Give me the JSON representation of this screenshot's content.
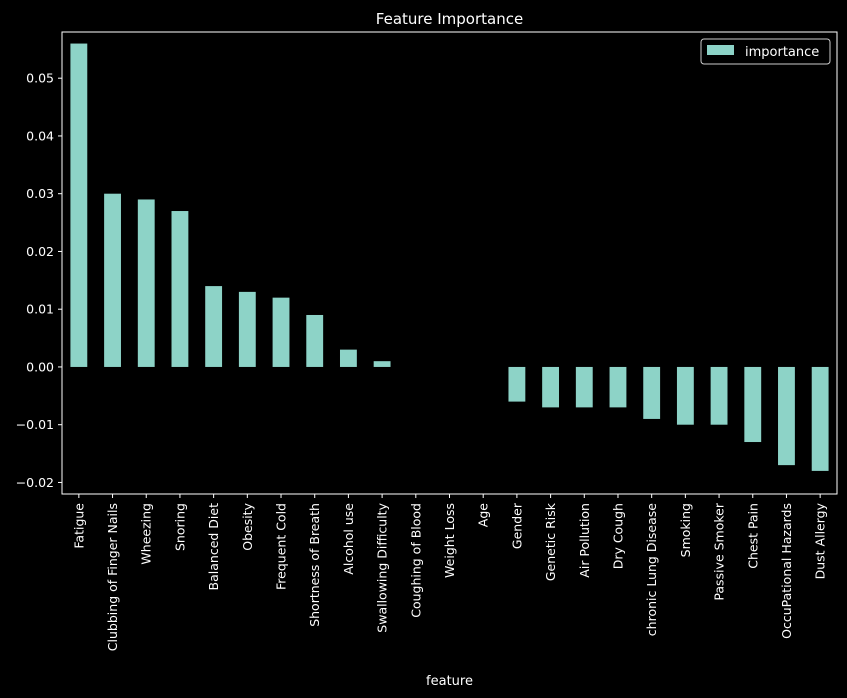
{
  "chart_data": {
    "type": "bar",
    "title": "Feature Importance",
    "xlabel": "feature",
    "ylabel": "",
    "ylim": [
      -0.022,
      0.058
    ],
    "yticks": [
      -0.02,
      -0.01,
      0.0,
      0.01,
      0.02,
      0.03,
      0.04,
      0.05
    ],
    "ytick_labels": [
      "−0.02",
      "−0.01",
      "0.00",
      "0.01",
      "0.02",
      "0.03",
      "0.04",
      "0.05"
    ],
    "categories": [
      "Fatigue",
      "Clubbing of Finger Nails",
      "Wheezing",
      "Snoring",
      "Balanced Diet",
      "Obesity",
      "Frequent Cold",
      "Shortness of Breath",
      "Alcohol use",
      "Swallowing Difficulty",
      "Coughing of Blood",
      "Weight Loss",
      "Age",
      "Gender",
      "Genetic Risk",
      "Air Pollution",
      "Dry Cough",
      "chronic Lung Disease",
      "Smoking",
      "Passive Smoker",
      "Chest Pain",
      "OccuPational Hazards",
      "Dust Allergy"
    ],
    "series": [
      {
        "name": "importance",
        "values": [
          0.056,
          0.03,
          0.029,
          0.027,
          0.014,
          0.013,
          0.012,
          0.009,
          0.003,
          0.001,
          0.0,
          0.0,
          0.0,
          -0.006,
          -0.007,
          -0.007,
          -0.007,
          -0.009,
          -0.01,
          -0.01,
          -0.013,
          -0.017,
          -0.018
        ]
      }
    ],
    "legend_position": "top-right",
    "grid": false,
    "colors": {
      "bar": "#8dd3c7",
      "background": "#000000",
      "foreground": "#ffffff"
    }
  }
}
